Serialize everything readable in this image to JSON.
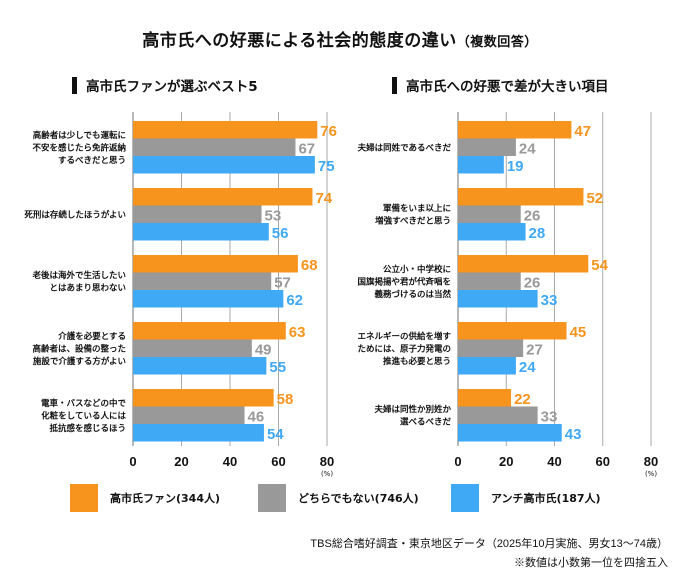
{
  "title": "高市氏への好悪による社会的態度の違い",
  "title_suffix": "（複数回答）",
  "legend": [
    {
      "name": "高市氏ファン(344人)",
      "color": "#F7941D"
    },
    {
      "name": "どちらでもない(746人)",
      "color": "#999999"
    },
    {
      "name": "アンチ高市氏(187人)",
      "color": "#3FA9F5"
    }
  ],
  "source_note": "TBS総合嗜好調査・東京地区データ（2025年10月実施、男女13〜74歳）",
  "rounding_note": "※数値は小数第一位を四捨五入",
  "chart_data": [
    {
      "type": "bar",
      "orientation": "horizontal",
      "title": "高市氏ファンが選ぶベスト5",
      "xlabel": "(%)",
      "xlim": [
        0,
        80
      ],
      "xticks": [
        "0",
        "20",
        "40",
        "60",
        "80"
      ],
      "grid": true,
      "categories": [
        [
          "高齢者は少しでも運転に",
          "不安を感じたら免許返納",
          "するべきだと思う"
        ],
        [
          "死刑は存続したほうがよい"
        ],
        [
          "老後は海外で生活したい",
          "とはあまり思わない"
        ],
        [
          "介護を必要とする",
          "高齢者は、設備の整った",
          "施設で介護する方がよい"
        ],
        [
          "電車・バスなどの中で",
          "化粧をしている人には",
          "抵抗感を感じるほう"
        ]
      ],
      "series": [
        {
          "name": "高市氏ファン(344人)",
          "color": "#F7941D",
          "values": [
            76,
            74,
            68,
            63,
            58
          ]
        },
        {
          "name": "どちらでもない(746人)",
          "color": "#999999",
          "values": [
            67,
            53,
            57,
            49,
            46
          ]
        },
        {
          "name": "アンチ高市氏(187人)",
          "color": "#3FA9F5",
          "values": [
            75,
            56,
            62,
            55,
            54
          ]
        }
      ]
    },
    {
      "type": "bar",
      "orientation": "horizontal",
      "title": "高市氏への好悪で差が大きい項目",
      "xlabel": "(%)",
      "xlim": [
        0,
        80
      ],
      "xticks": [
        "0",
        "20",
        "40",
        "60",
        "80"
      ],
      "grid": true,
      "categories": [
        [
          "夫婦は同姓であるべきだ"
        ],
        [
          "軍備をいま以上に",
          "増強すべきだと思う"
        ],
        [
          "公立小・中学校に",
          "国旗掲揚や君が代斉唱を",
          "義務づけるのは当然"
        ],
        [
          "エネルギーの供給を増す",
          "ためには、原子力発電の",
          "推進も必要と思う"
        ],
        [
          "夫婦は同性か別姓か",
          "選べるべきだ"
        ]
      ],
      "series": [
        {
          "name": "高市氏ファン(344人)",
          "color": "#F7941D",
          "values": [
            47,
            52,
            54,
            45,
            22
          ]
        },
        {
          "name": "どちらでもない(746人)",
          "color": "#999999",
          "values": [
            24,
            26,
            26,
            27,
            33
          ]
        },
        {
          "name": "アンチ高市氏(187人)",
          "color": "#3FA9F5",
          "values": [
            19,
            28,
            33,
            24,
            43
          ]
        }
      ]
    }
  ]
}
